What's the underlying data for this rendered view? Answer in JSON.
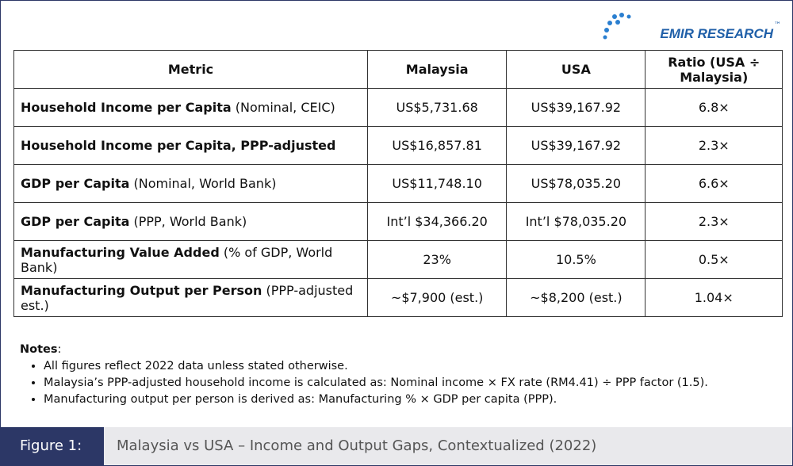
{
  "logo": {
    "text": "EMIR RESEARCH",
    "mark": "™"
  },
  "table": {
    "header": [
      "Metric",
      "Malaysia",
      "USA",
      "Ratio (USA ÷ Malaysia)"
    ],
    "rows": [
      [
        {
          "bold": "Household Income per Capita",
          "rest": " (Nominal, CEIC)"
        },
        "US$5,731.68",
        "US$39,167.92",
        "6.8×"
      ],
      [
        {
          "bold": "Household Income per Capita, PPP-adjusted",
          "rest": ""
        },
        "US$16,857.81",
        "US$39,167.92",
        "2.3×"
      ],
      [
        {
          "bold": "GDP per Capita",
          "rest": " (Nominal, World Bank)"
        },
        "US$11,748.10",
        "US$78,035.20",
        "6.6×"
      ],
      [
        {
          "bold": "GDP per Capita",
          "rest": " (PPP, World Bank)"
        },
        "Int’l $34,366.20",
        "Int’l $78,035.20",
        "2.3×"
      ],
      [
        {
          "bold": "Manufacturing Value Added",
          "rest": " (% of GDP, World Bank)"
        },
        "23%",
        "10.5%",
        "0.5×"
      ],
      [
        {
          "bold": "Manufacturing Output per Person",
          "rest": " (PPP-adjusted est.)"
        },
        "~$7,900 (est.)",
        "~$8,200 (est.)",
        "1.04×"
      ]
    ]
  },
  "notes": {
    "title": "Notes",
    "colon": ":",
    "items": [
      "All figures reflect 2022 data unless stated otherwise.",
      "Malaysia’s PPP-adjusted household income is calculated as: Nominal income × FX rate (RM4.41) ÷ PPP factor (1.5).",
      "Manufacturing output per person is derived as: Manufacturing % × GDP per capita (PPP)."
    ]
  },
  "footer": {
    "label": "Figure 1:",
    "caption": "Malaysia vs USA – Income and Output Gaps, Contextualized (2022)"
  }
}
